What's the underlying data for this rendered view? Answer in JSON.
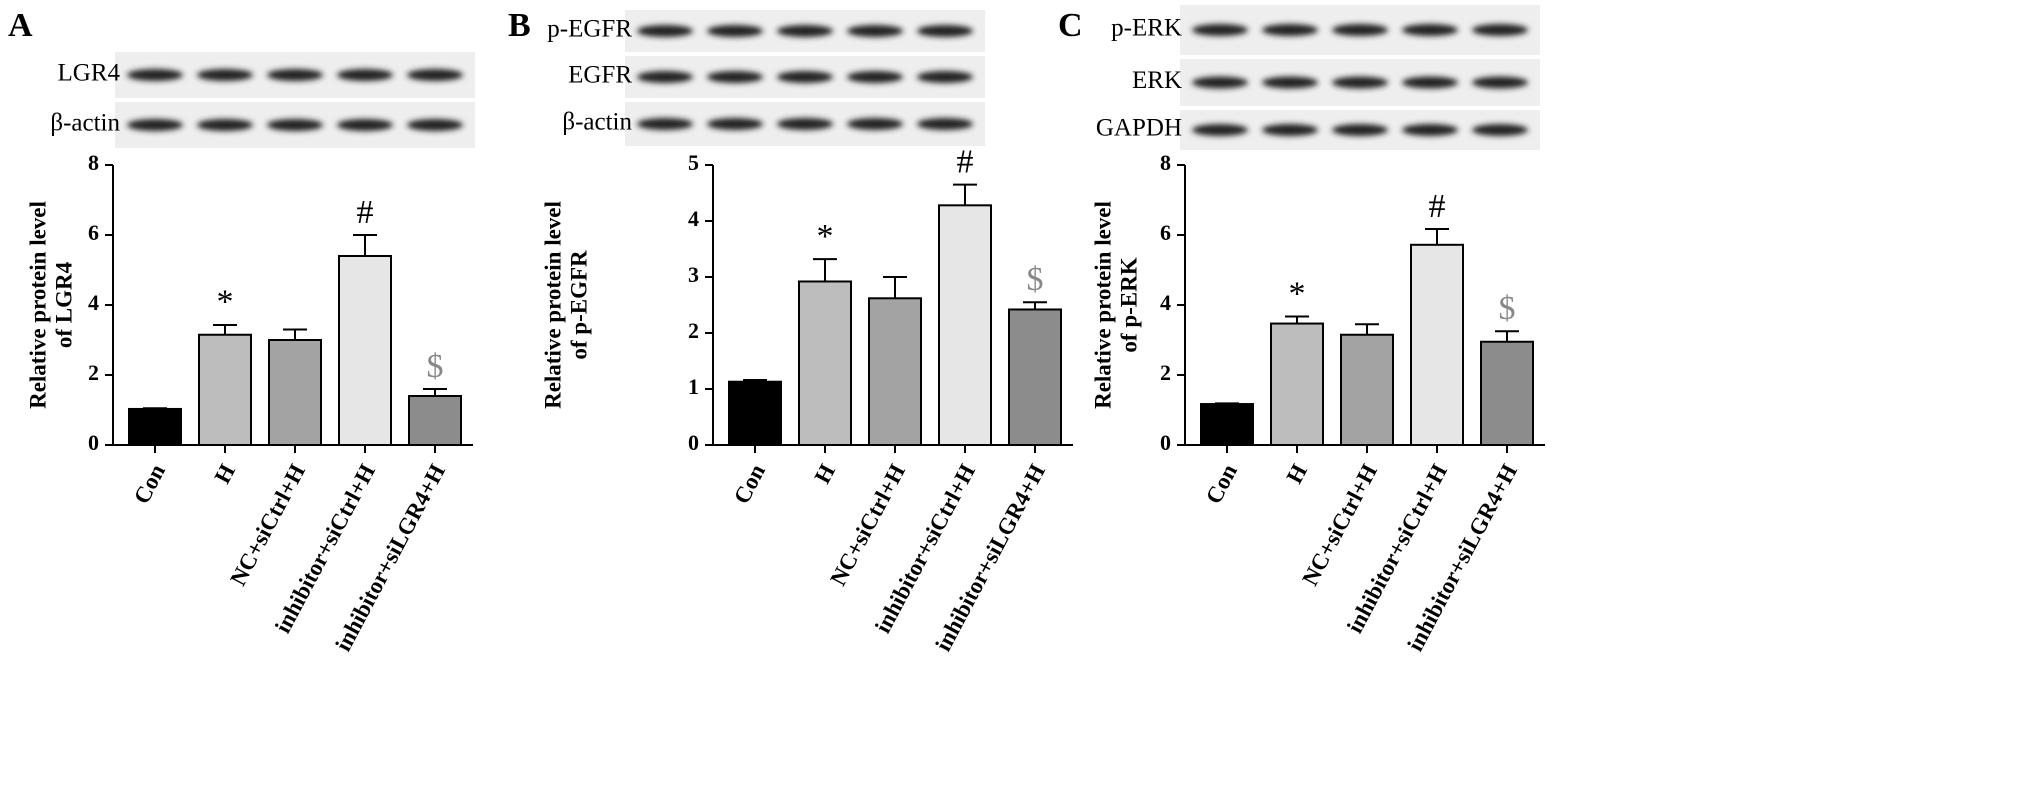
{
  "chart_data": [
    {
      "type": "bar",
      "panel": "A",
      "blot_labels": [
        "LGR4",
        "β-actin"
      ],
      "y_label": [
        "Relative protein level",
        "of LGR4"
      ],
      "categories": [
        "Con",
        "H",
        "NC+siCtrl+H",
        "inhibitor+siCtrl+H",
        "inhibitor+siLGR4+H"
      ],
      "values": [
        1.03,
        3.15,
        3.0,
        5.4,
        1.4
      ],
      "errors": [
        0.02,
        0.28,
        0.3,
        0.6,
        0.2
      ],
      "colors": [
        "#000000",
        "#bdbdbd",
        "#a3a3a3",
        "#e6e6e6",
        "#8c8c8c"
      ],
      "significance": [
        null,
        "*",
        null,
        "#",
        "$"
      ],
      "significance_colors": [
        null,
        "#000000",
        null,
        "#000000",
        "#888888"
      ],
      "ylim": [
        0,
        8
      ],
      "yticks": [
        0,
        2,
        4,
        6,
        8
      ]
    },
    {
      "type": "bar",
      "panel": "B",
      "blot_labels": [
        "p-EGFR",
        "EGFR",
        "β-actin"
      ],
      "y_label": [
        "Relative protein level",
        "of p-EGFR"
      ],
      "categories": [
        "Con",
        "H",
        "NC+siCtrl+H",
        "inhibitor+siCtrl+H",
        "inhibitor+siLGR4+H"
      ],
      "values": [
        1.13,
        2.92,
        2.62,
        4.28,
        2.42
      ],
      "errors": [
        0.03,
        0.4,
        0.38,
        0.37,
        0.13
      ],
      "colors": [
        "#000000",
        "#bdbdbd",
        "#a3a3a3",
        "#e6e6e6",
        "#8c8c8c"
      ],
      "significance": [
        null,
        "*",
        null,
        "#",
        "$"
      ],
      "significance_colors": [
        null,
        "#000000",
        null,
        "#000000",
        "#888888"
      ],
      "ylim": [
        0,
        5
      ],
      "yticks": [
        0,
        1,
        2,
        3,
        4,
        5
      ]
    },
    {
      "type": "bar",
      "panel": "C",
      "blot_labels": [
        "p-ERK",
        "ERK",
        "GAPDH"
      ],
      "y_label": [
        "Relative protein level",
        "of p-ERK"
      ],
      "categories": [
        "Con",
        "H",
        "NC+siCtrl+H",
        "inhibitor+siCtrl+H",
        "inhibitor+siLGR4+H"
      ],
      "values": [
        1.17,
        3.47,
        3.15,
        5.72,
        2.95
      ],
      "errors": [
        0.02,
        0.2,
        0.3,
        0.45,
        0.3
      ],
      "colors": [
        "#000000",
        "#bdbdbd",
        "#a3a3a3",
        "#e6e6e6",
        "#8c8c8c"
      ],
      "significance": [
        null,
        "*",
        null,
        "#",
        "$"
      ],
      "significance_colors": [
        null,
        "#000000",
        null,
        "#000000",
        "#888888"
      ],
      "ylim": [
        0,
        8
      ],
      "yticks": [
        0,
        2,
        4,
        6,
        8
      ]
    }
  ]
}
